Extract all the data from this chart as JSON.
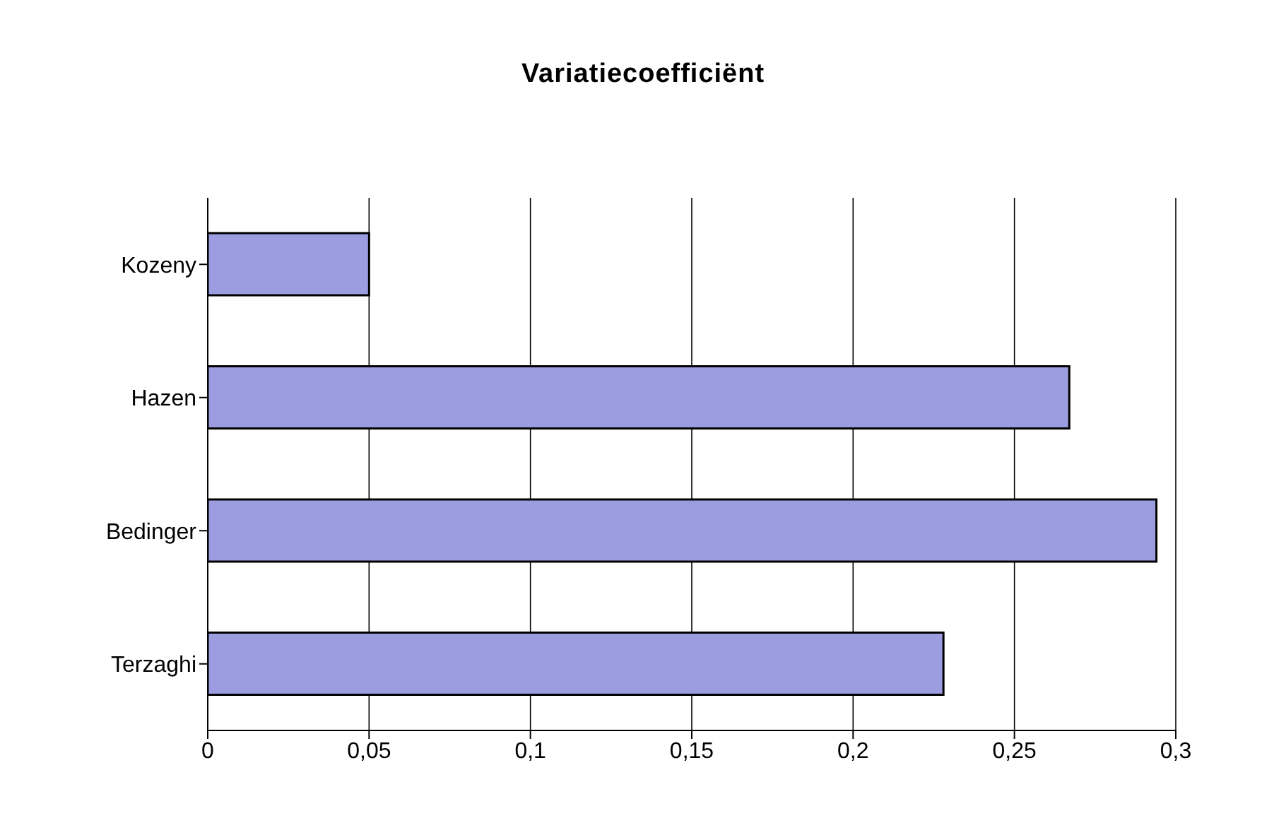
{
  "chart_data": {
    "type": "bar",
    "orientation": "horizontal",
    "title": "Variatiecoefficiënt",
    "categories": [
      "Kozeny",
      "Hazen",
      "Bedinger",
      "Terzaghi"
    ],
    "values": [
      0.05,
      0.267,
      0.294,
      0.228
    ],
    "color": "#9c9ce0",
    "xlim": [
      0,
      0.3
    ],
    "xticks": [
      0,
      {
        "value": 0.05,
        "label": "0,05"
      },
      {
        "value": 0.1,
        "label": "0,1"
      },
      {
        "value": 0.15,
        "label": "0,15"
      },
      {
        "value": 0.2,
        "label": "0,2"
      },
      {
        "value": 0.25,
        "label": "0,25"
      },
      {
        "value": 0.3,
        "label": "0,3"
      }
    ],
    "grid": "x",
    "legend": false
  }
}
